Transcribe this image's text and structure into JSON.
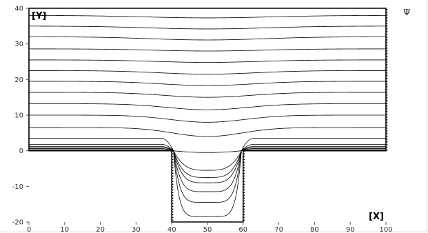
{
  "chart_data": {
    "type": "line",
    "title": "",
    "xlabel": "[X]",
    "ylabel": "[Y]",
    "field_label": "Ψ",
    "xlim": [
      0,
      100
    ],
    "ylim": [
      -20,
      40
    ],
    "xticks": [
      "0",
      "10",
      "20",
      "30",
      "40",
      "50",
      "60",
      "70",
      "80",
      "90",
      "100"
    ],
    "yticks": [
      "40",
      "30",
      "20",
      "10",
      "0",
      "-10",
      "-20"
    ],
    "grid": false,
    "legend": "none",
    "domain_outline": [
      [
        0,
        0
      ],
      [
        40,
        0
      ],
      [
        40,
        -20
      ],
      [
        60,
        -20
      ],
      [
        60,
        0
      ],
      [
        100,
        0
      ],
      [
        100,
        40
      ],
      [
        0,
        40
      ]
    ],
    "channel": {
      "x_start": 40,
      "x_end": 60,
      "floor": -20
    },
    "colors": {
      "line": "#000000",
      "background": "#ffffff",
      "tick": "#333333"
    },
    "series": [
      {
        "far_y": 38,
        "min_y": 37.3
      },
      {
        "far_y": 35,
        "min_y": 34.2
      },
      {
        "far_y": 32,
        "min_y": 31.1
      },
      {
        "far_y": 28.6,
        "min_y": 28.0
      },
      {
        "far_y": 25.5,
        "min_y": 24.8
      },
      {
        "far_y": 22.5,
        "min_y": 21.5
      },
      {
        "far_y": 19.5,
        "min_y": 18.3
      },
      {
        "far_y": 16.4,
        "min_y": 15.0
      },
      {
        "far_y": 13.2,
        "min_y": 11.5
      },
      {
        "far_y": 10.0,
        "min_y": 8.0
      },
      {
        "far_y": 6.5,
        "min_y": 4.0
      },
      {
        "far_y": 3.5,
        "min_y": -0.5
      },
      {
        "far_y": 1.8,
        "min_y": -5.5
      },
      {
        "far_y": 1.2,
        "min_y": -7.5
      },
      {
        "far_y": 0.9,
        "min_y": -9.0
      },
      {
        "far_y": 0.6,
        "min_y": -11.5
      },
      {
        "far_y": 0.3,
        "min_y": -14.5
      },
      {
        "far_y": 0.1,
        "min_y": -18.5
      }
    ]
  }
}
